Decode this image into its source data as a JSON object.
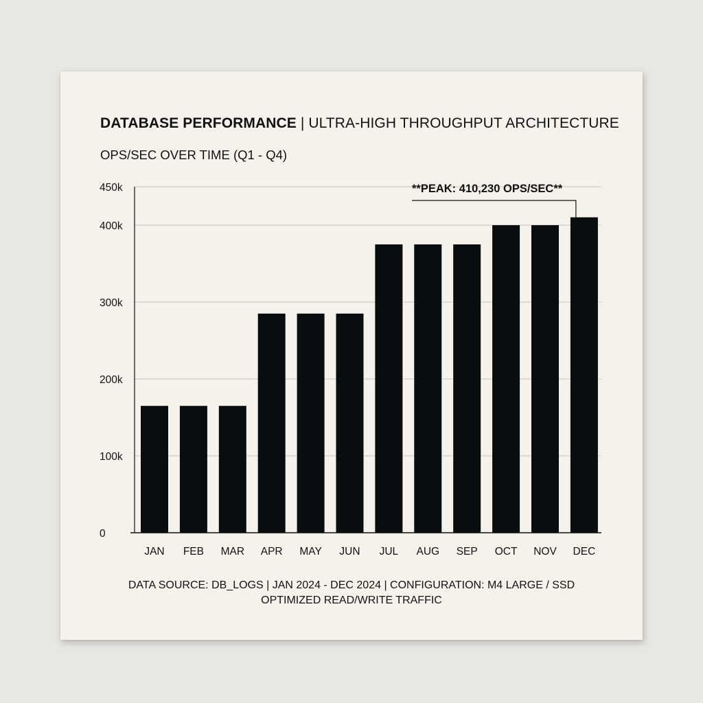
{
  "header": {
    "title_strong": "DATABASE PERFORMANCE",
    "title_rest": " | ULTRA-HIGH THROUGHPUT ARCHITECTURE",
    "subtitle": "OPS/SEC OVER TIME (Q1 - Q4)"
  },
  "chart_data": {
    "type": "bar",
    "categories": [
      "JAN",
      "FEB",
      "MAR",
      "APR",
      "MAY",
      "JUN",
      "JUL",
      "AUG",
      "SEP",
      "OCT",
      "NOV",
      "DEC"
    ],
    "values": [
      165000,
      165000,
      165000,
      285000,
      285000,
      285000,
      375000,
      375000,
      375000,
      400000,
      400000,
      410230
    ],
    "ylim": [
      0,
      450000
    ],
    "yticks": [
      0,
      100000,
      200000,
      300000,
      400000,
      450000
    ],
    "ytick_labels": [
      "0",
      "100k",
      "200k",
      "300k",
      "400k",
      "450k"
    ],
    "grid": true,
    "bar_color": "#0a0d10",
    "annotation": {
      "text": "**PEAK: 410,230 OPS/SEC**",
      "category": "DEC"
    }
  },
  "footer": {
    "line1": "DATA SOURCE: DB_LOGS  |  JAN 2024 - DEC 2024  |  CONFIGURATION: M4 LARGE / SSD",
    "line2": "OPTIMIZED READ/WRITE TRAFFIC"
  }
}
